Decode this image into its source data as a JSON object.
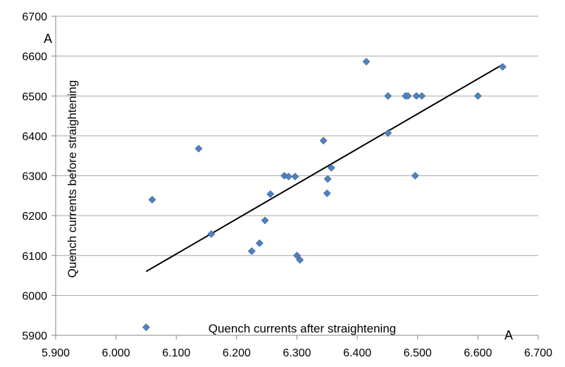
{
  "chart_data": {
    "type": "scatter",
    "xlabel": "Quench currents after straightening",
    "ylabel": "Quench currents before straightening",
    "x_unit": "A",
    "y_unit": "A",
    "xlim": [
      5.9,
      6.7
    ],
    "ylim": [
      5900,
      6700
    ],
    "x_ticks": [
      "5.900",
      "6.000",
      "6.100",
      "6.200",
      "6.300",
      "6.400",
      "6.500",
      "6.600",
      "6.700"
    ],
    "y_ticks": [
      "5900",
      "6000",
      "6100",
      "6200",
      "6300",
      "6400",
      "6500",
      "6600",
      "6700"
    ],
    "x_tick_values": [
      5.9,
      6.0,
      6.1,
      6.2,
      6.3,
      6.4,
      6.5,
      6.6,
      6.7
    ],
    "y_tick_values": [
      5900,
      6000,
      6100,
      6200,
      6300,
      6400,
      6500,
      6600,
      6700
    ],
    "grid": "horizontal",
    "marker_color": "#4F81BD",
    "trendline_color": "#000000",
    "points": [
      {
        "x": 6.05,
        "y": 5920
      },
      {
        "x": 6.06,
        "y": 6240
      },
      {
        "x": 6.137,
        "y": 6368
      },
      {
        "x": 6.158,
        "y": 6154
      },
      {
        "x": 6.225,
        "y": 6111
      },
      {
        "x": 6.238,
        "y": 6131
      },
      {
        "x": 6.247,
        "y": 6188
      },
      {
        "x": 6.256,
        "y": 6254
      },
      {
        "x": 6.279,
        "y": 6300
      },
      {
        "x": 6.286,
        "y": 6298
      },
      {
        "x": 6.297,
        "y": 6298
      },
      {
        "x": 6.3,
        "y": 6100
      },
      {
        "x": 6.305,
        "y": 6089
      },
      {
        "x": 6.344,
        "y": 6388
      },
      {
        "x": 6.35,
        "y": 6256
      },
      {
        "x": 6.351,
        "y": 6292
      },
      {
        "x": 6.357,
        "y": 6320
      },
      {
        "x": 6.415,
        "y": 6586
      },
      {
        "x": 6.451,
        "y": 6500
      },
      {
        "x": 6.451,
        "y": 6407
      },
      {
        "x": 6.48,
        "y": 6500
      },
      {
        "x": 6.484,
        "y": 6500
      },
      {
        "x": 6.496,
        "y": 6300
      },
      {
        "x": 6.498,
        "y": 6500
      },
      {
        "x": 6.507,
        "y": 6500
      },
      {
        "x": 6.6,
        "y": 6500
      },
      {
        "x": 6.641,
        "y": 6573
      }
    ],
    "trendline": [
      {
        "x": 6.05,
        "y": 6060
      },
      {
        "x": 6.64,
        "y": 6578
      }
    ]
  }
}
